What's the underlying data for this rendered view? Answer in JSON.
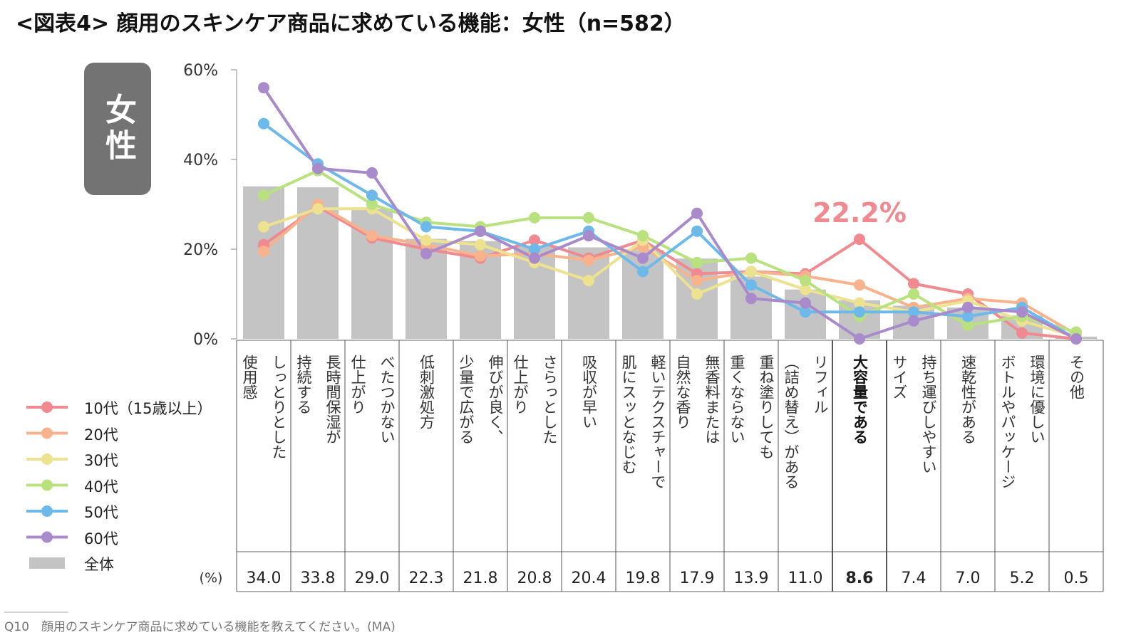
{
  "title": "<図表4> 顔用のスキンケア商品に求めている機能：女性（n=582）",
  "badge": "女性",
  "question_note": "Q10　顔用のスキンケア商品に求めている機能を教えてください。(MA)",
  "unit_label": "(%)",
  "highlight_label": "22.2%",
  "chart_data": {
    "type": "bar+line",
    "ylim": [
      0,
      60
    ],
    "yticks": [
      "0%",
      "20%",
      "40%",
      "60%"
    ],
    "categories": [
      [
        "しっとりとした",
        "使用感"
      ],
      [
        "長時間保湿が",
        "持続する"
      ],
      [
        "べたつかない",
        "仕上がり"
      ],
      [
        "低刺激処方"
      ],
      [
        "伸びが良く、",
        "少量で広がる"
      ],
      [
        "さらっとした",
        "仕上がり"
      ],
      [
        "吸収が早い"
      ],
      [
        "軽いテクスチャーで",
        "肌にスッとなじむ"
      ],
      [
        "無香料または",
        "自然な香り"
      ],
      [
        "重ね塗りしても",
        "重くならない"
      ],
      [
        "リフィル",
        "（詰め替え）がある"
      ],
      [
        "大容量である"
      ],
      [
        "持ち運びしやすい",
        "サイズ"
      ],
      [
        "速乾性がある"
      ],
      [
        "環境に優しい",
        "ボトルやパッケージ"
      ],
      [
        "その他"
      ]
    ],
    "highlight_index": 11,
    "total": {
      "name": "全体",
      "color": "#c4c4c4",
      "values": [
        34.0,
        33.8,
        29.0,
        22.3,
        21.8,
        20.8,
        20.4,
        19.8,
        17.9,
        13.9,
        11.0,
        8.6,
        7.4,
        7.0,
        5.2,
        0.5
      ],
      "labels": [
        "34.0",
        "33.8",
        "29.0",
        "22.3",
        "21.8",
        "20.8",
        "20.4",
        "19.8",
        "17.9",
        "13.9",
        "11.0",
        "8.6",
        "7.4",
        "7.0",
        "5.2",
        "0.5"
      ]
    },
    "series": [
      {
        "name": "10代（15歳以上）",
        "color": "#f08a90",
        "values": [
          21.0,
          29.5,
          22.5,
          20.0,
          18.0,
          22.0,
          18.0,
          22.0,
          14.5,
          15.0,
          14.5,
          22.2,
          12.3,
          10.0,
          1.3,
          0.0
        ]
      },
      {
        "name": "20代",
        "color": "#f8b38c",
        "values": [
          19.5,
          30.0,
          23.0,
          21.0,
          18.5,
          19.0,
          17.5,
          20.5,
          13.0,
          15.0,
          14.0,
          12.0,
          7.0,
          9.0,
          8.0,
          1.0
        ]
      },
      {
        "name": "30代",
        "color": "#ece28f",
        "values": [
          25.0,
          29.0,
          29.0,
          22.0,
          21.0,
          17.0,
          13.0,
          22.0,
          10.0,
          15.0,
          11.0,
          8.0,
          6.0,
          8.5,
          4.0,
          0.5
        ]
      },
      {
        "name": "40代",
        "color": "#b9e27f",
        "values": [
          32.0,
          37.5,
          30.0,
          26.0,
          25.0,
          27.0,
          27.0,
          23.0,
          17.0,
          18.0,
          13.0,
          5.0,
          10.0,
          3.0,
          5.0,
          1.5
        ]
      },
      {
        "name": "50代",
        "color": "#6cb9ea",
        "values": [
          48.0,
          39.0,
          32.0,
          25.0,
          24.0,
          20.0,
          24.0,
          15.0,
          24.0,
          12.0,
          6.0,
          6.0,
          6.0,
          5.0,
          7.0,
          0.0
        ]
      },
      {
        "name": "60代",
        "color": "#a98bcc",
        "values": [
          56.0,
          38.0,
          37.0,
          19.0,
          24.0,
          18.0,
          23.0,
          18.0,
          28.0,
          9.0,
          8.0,
          0.0,
          4.0,
          7.0,
          6.0,
          0.0
        ]
      }
    ]
  }
}
